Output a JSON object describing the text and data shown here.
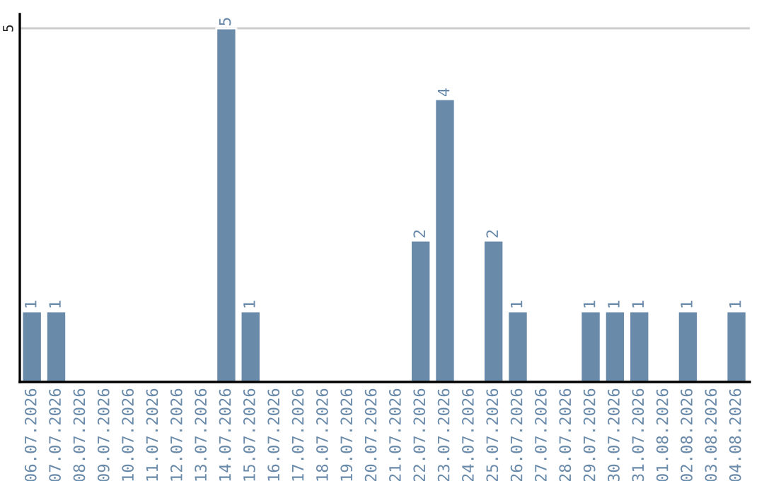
{
  "chart_data": {
    "type": "bar",
    "categories": [
      "06.07.2026",
      "07.07.2026",
      "08.07.2026",
      "09.07.2026",
      "10.07.2026",
      "11.07.2026",
      "12.07.2026",
      "13.07.2026",
      "14.07.2026",
      "15.07.2026",
      "16.07.2026",
      "17.07.2026",
      "18.07.2026",
      "19.07.2026",
      "20.07.2026",
      "21.07.2026",
      "22.07.2026",
      "23.07.2026",
      "24.07.2026",
      "25.07.2026",
      "26.07.2026",
      "27.07.2026",
      "28.07.2026",
      "29.07.2026",
      "30.07.2026",
      "31.07.2026",
      "01.08.2026",
      "02.08.2026",
      "03.08.2026",
      "04.08.2026"
    ],
    "values": [
      1,
      1,
      null,
      null,
      null,
      null,
      null,
      null,
      5,
      1,
      null,
      null,
      null,
      null,
      null,
      null,
      2,
      4,
      null,
      2,
      1,
      null,
      null,
      1,
      1,
      1,
      null,
      1,
      null,
      1
    ],
    "value_labels": [
      "1",
      "1",
      null,
      null,
      null,
      null,
      null,
      null,
      "5",
      "1",
      null,
      null,
      null,
      null,
      null,
      null,
      "2",
      "4",
      null,
      "2",
      "1",
      null,
      null,
      "1",
      "1",
      "1",
      null,
      "1",
      null,
      "1"
    ],
    "color": "#6a8aaa",
    "ylim": [
      0,
      5.2
    ],
    "yticks": [
      5
    ],
    "grid": "y",
    "legend": false
  }
}
